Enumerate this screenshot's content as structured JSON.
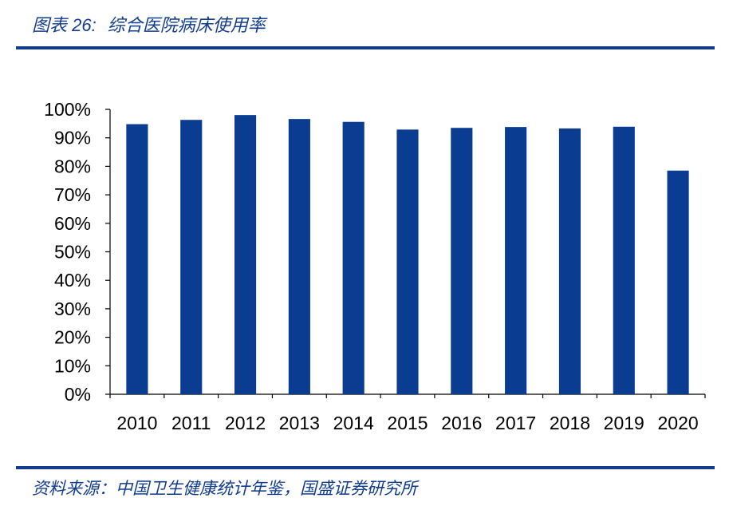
{
  "header": {
    "figure_label": "图表 26:",
    "title": "综合医院病床使用率"
  },
  "footer": {
    "source": "资料来源：中国卫生健康统计年鉴，国盛证券研究所"
  },
  "colors": {
    "bar": "#0a3d91",
    "rule": "#123c8c",
    "axis": "#000000"
  },
  "chart_data": {
    "type": "bar",
    "title": "综合医院病床使用率",
    "categories": [
      "2010",
      "2011",
      "2012",
      "2013",
      "2014",
      "2015",
      "2016",
      "2017",
      "2018",
      "2019",
      "2020"
    ],
    "values": [
      94.8,
      96.3,
      98.0,
      96.6,
      95.6,
      92.9,
      93.5,
      93.8,
      93.3,
      93.9,
      78.5
    ],
    "unit": "%",
    "ylim": [
      0,
      100
    ],
    "yticks": [
      "0%",
      "10%",
      "20%",
      "30%",
      "40%",
      "50%",
      "60%",
      "70%",
      "80%",
      "90%",
      "100%"
    ],
    "grid": false,
    "legend": "none"
  }
}
